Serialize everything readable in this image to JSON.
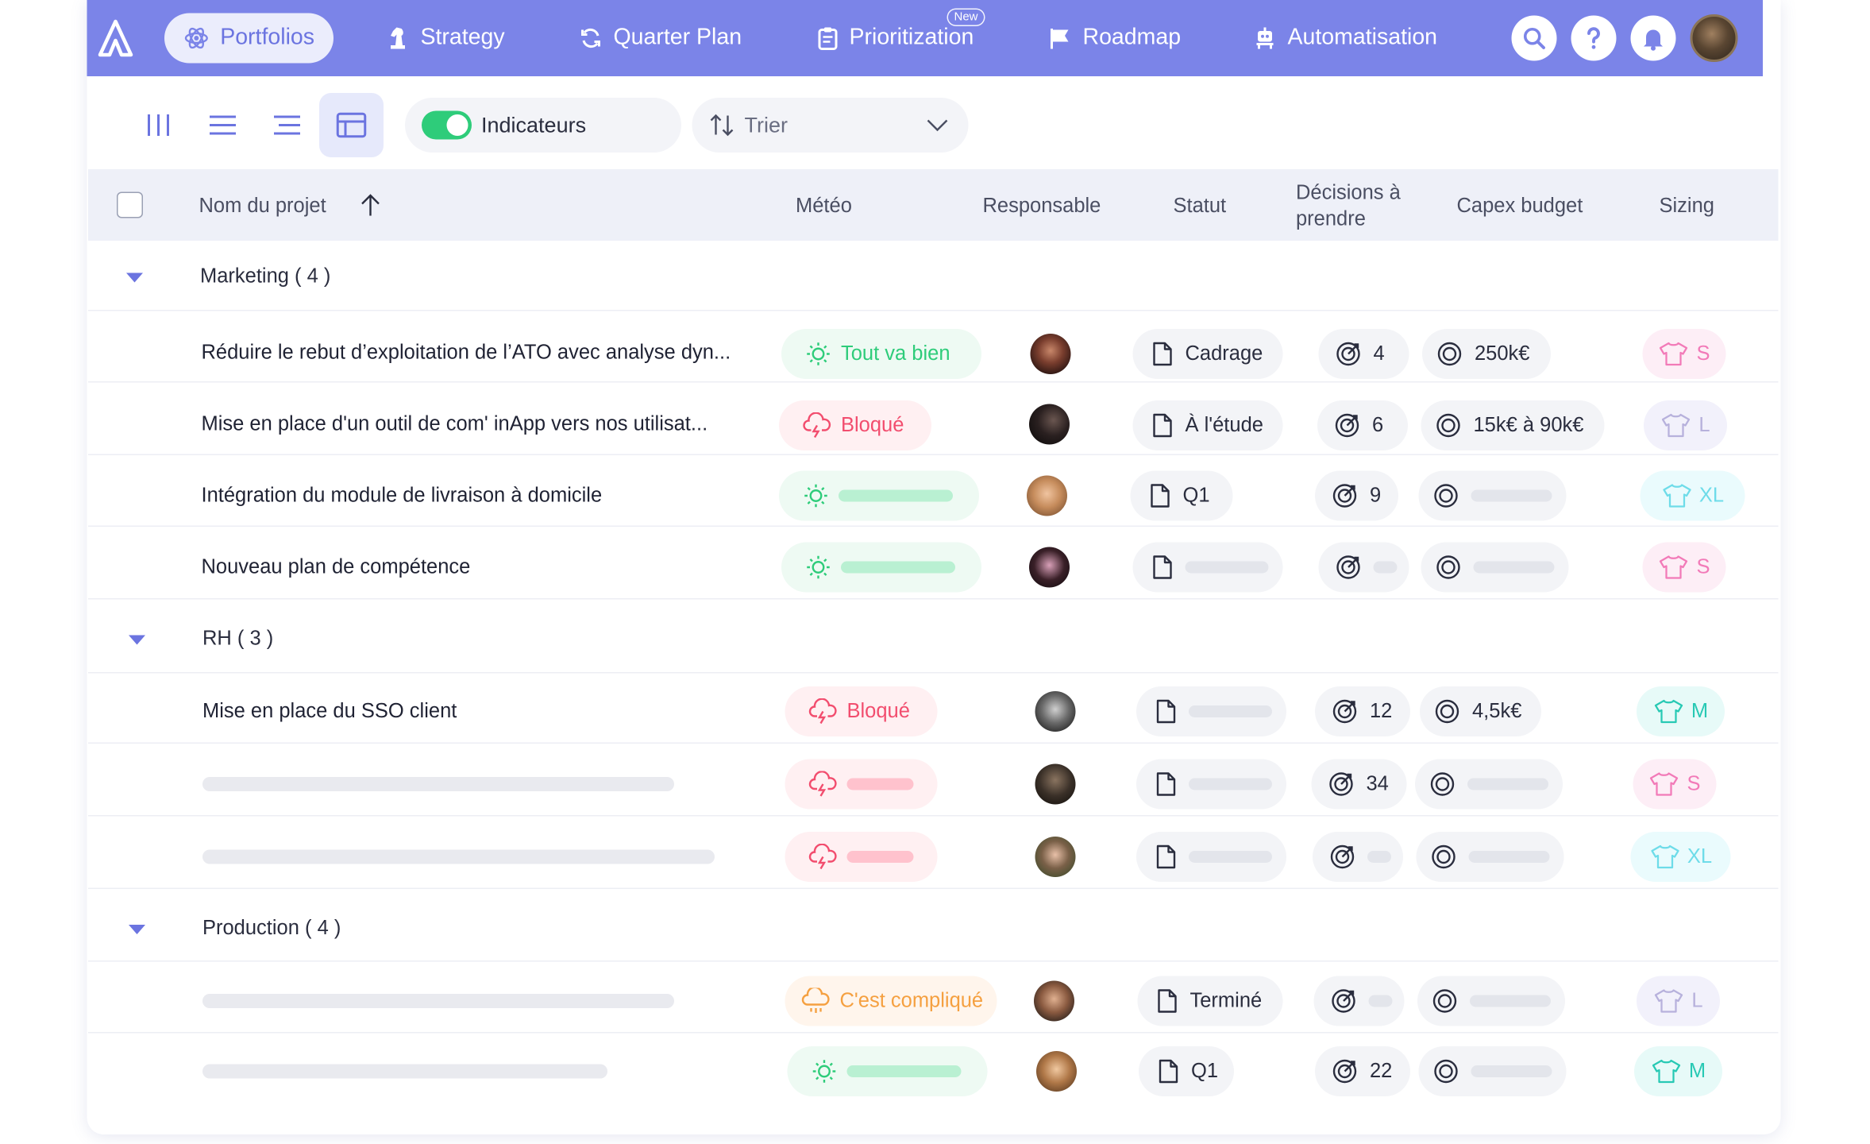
{
  "nav": {
    "items": [
      {
        "label": "Portfolios",
        "icon": "atom-icon",
        "active": true
      },
      {
        "label": "Strategy",
        "icon": "chess-knight-icon"
      },
      {
        "label": "Quarter Plan",
        "icon": "refresh-icon"
      },
      {
        "label": "Prioritization",
        "icon": "clipboard-icon",
        "badge": "New"
      },
      {
        "label": "Roadmap",
        "icon": "flag-icon"
      },
      {
        "label": "Automatisation",
        "icon": "robot-icon"
      }
    ],
    "icons": [
      "search-icon",
      "help-icon",
      "bell-icon"
    ]
  },
  "toolbar": {
    "toggle_label": "Indicateurs",
    "sort_label": "Trier"
  },
  "columns": {
    "name": "Nom du projet",
    "meteo": "Météo",
    "responsable": "Responsable",
    "statut": "Statut",
    "decisions_l1": "Décisions à",
    "decisions_l2": "prendre",
    "capex": "Capex budget",
    "sizing": "Sizing"
  },
  "groups": [
    {
      "label": "Marketing ( 4 )"
    },
    {
      "label": "RH ( 3 )"
    },
    {
      "label": "Production ( 4 )"
    }
  ],
  "rows": [
    {
      "name": "Réduire le rebut d’exploitation de l’ATO avec analyse dyn...",
      "meteo": "Tout va bien",
      "statut": "Cadrage",
      "decisions": "4",
      "capex": "250k€",
      "size": "S"
    },
    {
      "name": "Mise en place d'un outil de com' inApp vers nos utilisat...",
      "meteo": "Bloqué",
      "statut": "À l'étude",
      "decisions": "6",
      "capex": "15k€ à 90k€",
      "size": "L"
    },
    {
      "name": "Intégration du module de livraison à domicile",
      "meteo": "",
      "statut": "Q1",
      "decisions": "9",
      "capex": "",
      "size": "XL"
    },
    {
      "name": "Nouveau plan de compétence",
      "meteo": "",
      "statut": "",
      "decisions": "",
      "capex": "",
      "size": "S"
    },
    {
      "name": "Mise en place du SSO client",
      "meteo": "Bloqué",
      "statut": "",
      "decisions": "12",
      "capex": "4,5k€",
      "size": "M"
    },
    {
      "name": "",
      "meteo": "",
      "statut": "",
      "decisions": "34",
      "capex": "",
      "size": "S"
    },
    {
      "name": "",
      "meteo": "",
      "statut": "",
      "decisions": "",
      "capex": "",
      "size": "XL"
    },
    {
      "name": "",
      "meteo": "C'est compliqué",
      "statut": "Terminé",
      "decisions": "",
      "capex": "",
      "size": "L"
    },
    {
      "name": "",
      "meteo": "",
      "statut": "Q1",
      "decisions": "22",
      "capex": "",
      "size": "M"
    }
  ],
  "colors": {
    "primary": "#7b84e8",
    "green": "#2ecc7a",
    "red": "#f24d6e",
    "orange": "#f5a040"
  }
}
